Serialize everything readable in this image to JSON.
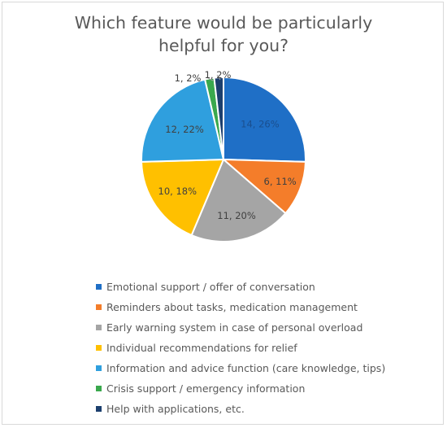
{
  "chart_data": {
    "type": "pie",
    "title": "Which feature would be particularly helpful for you?",
    "slices": [
      {
        "label": "Emotional support / offer of conversation",
        "value": 14,
        "pct": "26%",
        "text": "14, 26%",
        "color": "#1f6fc6"
      },
      {
        "label": "Reminders about tasks, medication management",
        "value": 6,
        "pct": "11%",
        "text": "6, 11%",
        "color": "#f47d2a"
      },
      {
        "label": "Early warning system in case of personal overload",
        "value": 11,
        "pct": "20%",
        "text": "11, 20%",
        "color": "#a5a5a5"
      },
      {
        "label": "Individual recommendations for relief",
        "value": 10,
        "pct": "18%",
        "text": "10, 18%",
        "color": "#ffc000"
      },
      {
        "label": "Information and advice function (care knowledge, tips)",
        "value": 12,
        "pct": "22%",
        "text": "12, 22%",
        "color": "#2f9fde"
      },
      {
        "label": "Crisis support / emergency information",
        "value": 1,
        "pct": "2%",
        "text": "1, 2%",
        "color": "#3aa84d"
      },
      {
        "label": "Help with applications, etc.",
        "value": 1,
        "pct": "2%",
        "text": "1, 2%",
        "color": "#1c3f6e"
      }
    ],
    "legend_position": "bottom"
  }
}
